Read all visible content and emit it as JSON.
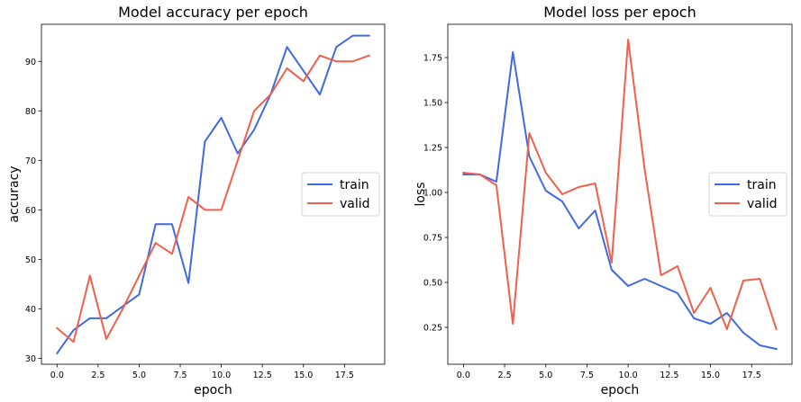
{
  "chart_data": [
    {
      "type": "line",
      "title": "Model accuracy per epoch",
      "xlabel": "epoch",
      "ylabel": "accuracy",
      "xlim": [
        -0.95,
        19.95
      ],
      "ylim": [
        28.8,
        97.5
      ],
      "x_ticks": [
        0.0,
        2.5,
        5.0,
        7.5,
        10.0,
        12.5,
        15.0,
        17.5
      ],
      "x_tick_labels": [
        "0.0",
        "2.5",
        "5.0",
        "7.5",
        "10.0",
        "12.5",
        "15.0",
        "17.5"
      ],
      "y_ticks": [
        30,
        40,
        50,
        60,
        70,
        80,
        90
      ],
      "y_tick_labels": [
        "30",
        "40",
        "50",
        "60",
        "70",
        "80",
        "90"
      ],
      "legend_position": "center-right",
      "x": [
        0,
        1,
        2,
        3,
        4,
        5,
        6,
        7,
        8,
        9,
        10,
        11,
        12,
        13,
        14,
        15,
        16,
        17,
        18,
        19
      ],
      "series": [
        {
          "name": "train",
          "color": "#4169e1",
          "values": [
            31.0,
            35.7,
            38.1,
            38.1,
            40.5,
            42.9,
            57.1,
            57.1,
            45.2,
            73.8,
            78.6,
            71.4,
            76.2,
            83.3,
            92.9,
            88.1,
            83.3,
            92.9,
            95.2,
            95.2
          ]
        },
        {
          "name": "valid",
          "color": "#f0604b",
          "values": [
            36.1,
            33.3,
            46.7,
            33.9,
            40.0,
            46.7,
            53.3,
            51.1,
            62.6,
            60.0,
            60.0,
            70.0,
            80.0,
            83.3,
            88.6,
            86.0,
            91.2,
            90.0,
            90.0,
            91.2
          ]
        }
      ]
    },
    {
      "type": "line",
      "title": "Model loss per epoch",
      "xlabel": "epoch",
      "ylabel": "loss",
      "xlim": [
        -0.95,
        19.95
      ],
      "ylim": [
        0.045,
        1.935
      ],
      "x_ticks": [
        0.0,
        2.5,
        5.0,
        7.5,
        10.0,
        12.5,
        15.0,
        17.5
      ],
      "x_tick_labels": [
        "0.0",
        "2.5",
        "5.0",
        "7.5",
        "10.0",
        "12.5",
        "15.0",
        "17.5"
      ],
      "y_ticks": [
        0.25,
        0.5,
        0.75,
        1.0,
        1.25,
        1.5,
        1.75
      ],
      "y_tick_labels": [
        "0.25",
        "0.50",
        "0.75",
        "1.00",
        "1.25",
        "1.50",
        "1.75"
      ],
      "legend_position": "center-right",
      "x": [
        0,
        1,
        2,
        3,
        4,
        5,
        6,
        7,
        8,
        9,
        10,
        11,
        12,
        13,
        14,
        15,
        16,
        17,
        18,
        19
      ],
      "series": [
        {
          "name": "train",
          "color": "#4169e1",
          "values": [
            1.1,
            1.1,
            1.06,
            1.78,
            1.2,
            1.01,
            0.95,
            0.8,
            0.9,
            0.57,
            0.48,
            0.52,
            0.48,
            0.44,
            0.3,
            0.27,
            0.33,
            0.22,
            0.15,
            0.13
          ]
        },
        {
          "name": "valid",
          "color": "#f0604b",
          "values": [
            1.11,
            1.1,
            1.04,
            0.27,
            1.33,
            1.11,
            0.99,
            1.03,
            1.05,
            0.61,
            1.85,
            1.13,
            0.54,
            0.59,
            0.33,
            0.47,
            0.24,
            0.51,
            0.52,
            0.24
          ]
        }
      ]
    }
  ]
}
